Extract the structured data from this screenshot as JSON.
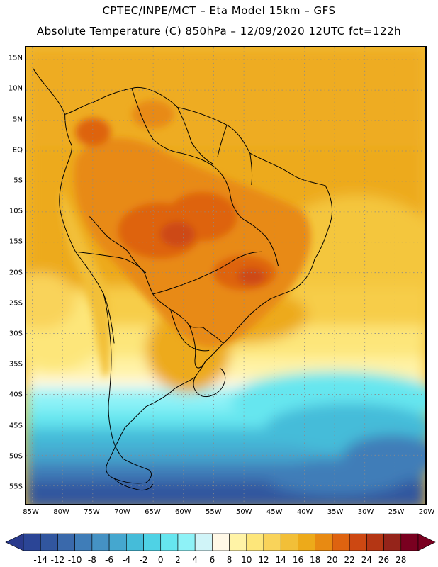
{
  "header": {
    "title_line1": "CPTEC/INPE/MCT –  Eta Model 15km – GFS",
    "title_line2": "Absolute Temperature (C) 850hPa – 12/09/2020 12UTC fct=122h"
  },
  "map": {
    "variable": "Absolute Temperature (C)",
    "level": "850hPa",
    "lat_ticks": [
      {
        "value": 15,
        "label": "15N"
      },
      {
        "value": 10,
        "label": "10N"
      },
      {
        "value": 5,
        "label": "5N"
      },
      {
        "value": 0,
        "label": "EQ"
      },
      {
        "value": -5,
        "label": "5S"
      },
      {
        "value": -10,
        "label": "10S"
      },
      {
        "value": -15,
        "label": "15S"
      },
      {
        "value": -20,
        "label": "20S"
      },
      {
        "value": -25,
        "label": "25S"
      },
      {
        "value": -30,
        "label": "30S"
      },
      {
        "value": -35,
        "label": "35S"
      },
      {
        "value": -40,
        "label": "40S"
      },
      {
        "value": -45,
        "label": "45S"
      },
      {
        "value": -50,
        "label": "50S"
      },
      {
        "value": -55,
        "label": "55S"
      }
    ],
    "lon_ticks": [
      {
        "value": -85,
        "label": "85W"
      },
      {
        "value": -80,
        "label": "80W"
      },
      {
        "value": -75,
        "label": "75W"
      },
      {
        "value": -70,
        "label": "70W"
      },
      {
        "value": -65,
        "label": "65W"
      },
      {
        "value": -60,
        "label": "60W"
      },
      {
        "value": -55,
        "label": "55W"
      },
      {
        "value": -50,
        "label": "50W"
      },
      {
        "value": -45,
        "label": "45W"
      },
      {
        "value": -40,
        "label": "40W"
      },
      {
        "value": -35,
        "label": "35W"
      },
      {
        "value": -30,
        "label": "30W"
      },
      {
        "value": -25,
        "label": "25W"
      },
      {
        "value": -20,
        "label": "20W"
      }
    ],
    "lat_range": [
      -58,
      17
    ],
    "lon_range": [
      -86,
      -20
    ]
  },
  "colorbar": {
    "labels": [
      "-14",
      "-12",
      "-10",
      "-8",
      "-6",
      "-4",
      "-2",
      "0",
      "2",
      "4",
      "6",
      "8",
      "10",
      "12",
      "14",
      "16",
      "18",
      "20",
      "22",
      "24",
      "26",
      "28"
    ],
    "under_color": "#2a3a8c",
    "over_color": "#7a0020",
    "colors": [
      "#2b4596",
      "#31569f",
      "#3a69ab",
      "#3f7db8",
      "#4592c4",
      "#45a7cf",
      "#45bcd9",
      "#4fd2e5",
      "#66e6ef",
      "#8ef2f7",
      "#d0f4f8",
      "#fff8e6",
      "#fff3a6",
      "#fde67a",
      "#f9d35a",
      "#f2bf38",
      "#edaa1a",
      "#e88a12",
      "#de6310",
      "#cd4812",
      "#b43614",
      "#95241a",
      "#7a0020"
    ]
  }
}
